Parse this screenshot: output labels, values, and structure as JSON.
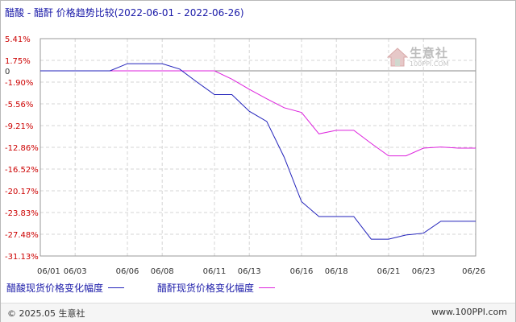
{
  "title": "醋酸 - 醋酐 价格趋势比较(2022-06-01 - 2022-06-26)",
  "chart_data": {
    "type": "line",
    "title": "醋酸 - 醋酐 价格趋势比较(2022-06-01 - 2022-06-26)",
    "xlabel": "",
    "ylabel": "",
    "y_ticks": [
      "5.41%",
      "1.75%",
      "0",
      "-1.90%",
      "-5.56%",
      "-9.21%",
      "-12.86%",
      "-16.52%",
      "-20.17%",
      "-23.83%",
      "-27.48%",
      "-31.13%"
    ],
    "y_tick_values": [
      5.41,
      1.75,
      0,
      -1.9,
      -5.56,
      -9.21,
      -12.86,
      -16.52,
      -20.17,
      -23.83,
      -27.48,
      -31.13
    ],
    "x_ticks": [
      "06/01",
      "06/03",
      "06/06",
      "06/08",
      "06/11",
      "06/13",
      "06/16",
      "06/18",
      "06/21",
      "06/23",
      "06/26"
    ],
    "ylim": [
      -31.13,
      5.41
    ],
    "grid": true,
    "legend_position": "bottom",
    "series": [
      {
        "name": "醋酸现货价格变化幅度",
        "color": "#2222bb",
        "x": [
          "2022-06-01",
          "2022-06-02",
          "2022-06-03",
          "2022-06-04",
          "2022-06-05",
          "2022-06-06",
          "2022-06-07",
          "2022-06-08",
          "2022-06-09",
          "2022-06-10",
          "2022-06-11",
          "2022-06-12",
          "2022-06-13",
          "2022-06-14",
          "2022-06-15",
          "2022-06-16",
          "2022-06-17",
          "2022-06-18",
          "2022-06-19",
          "2022-06-20",
          "2022-06-21",
          "2022-06-22",
          "2022-06-23",
          "2022-06-24",
          "2022-06-25",
          "2022-06-26"
        ],
        "values": [
          0,
          0,
          0,
          0,
          0,
          1.2,
          1.2,
          1.2,
          0.3,
          -1.9,
          -4.0,
          -4.0,
          -6.8,
          -8.5,
          -14.5,
          -22.0,
          -24.5,
          -24.5,
          -24.5,
          -28.3,
          -28.3,
          -27.6,
          -27.3,
          -25.3,
          -25.3,
          -25.3
        ]
      },
      {
        "name": "醋酐现货价格变化幅度",
        "color": "#dd22dd",
        "x": [
          "2022-06-01",
          "2022-06-02",
          "2022-06-03",
          "2022-06-04",
          "2022-06-05",
          "2022-06-06",
          "2022-06-07",
          "2022-06-08",
          "2022-06-09",
          "2022-06-10",
          "2022-06-11",
          "2022-06-12",
          "2022-06-13",
          "2022-06-14",
          "2022-06-15",
          "2022-06-16",
          "2022-06-17",
          "2022-06-18",
          "2022-06-19",
          "2022-06-20",
          "2022-06-21",
          "2022-06-22",
          "2022-06-23",
          "2022-06-24",
          "2022-06-25",
          "2022-06-26"
        ],
        "values": [
          0,
          0,
          0,
          0,
          0,
          0,
          0,
          0,
          0,
          0,
          0,
          -1.4,
          -3.1,
          -4.7,
          -6.2,
          -7.0,
          -10.6,
          -10.0,
          -10.0,
          -12.2,
          -14.3,
          -14.3,
          -13.0,
          -12.8,
          -13.0,
          -13.0
        ]
      }
    ]
  },
  "legend": {
    "items": [
      {
        "label": "醋酸现货价格变化幅度",
        "color": "#2222bb"
      },
      {
        "label": "醋酐现货价格变化幅度",
        "color": "#dd22dd"
      }
    ]
  },
  "watermark": {
    "name": "生意社",
    "url": "100PPI.COM"
  },
  "footer": {
    "left": "© 2025.05 生意社",
    "right": "www.100PPI.com"
  }
}
